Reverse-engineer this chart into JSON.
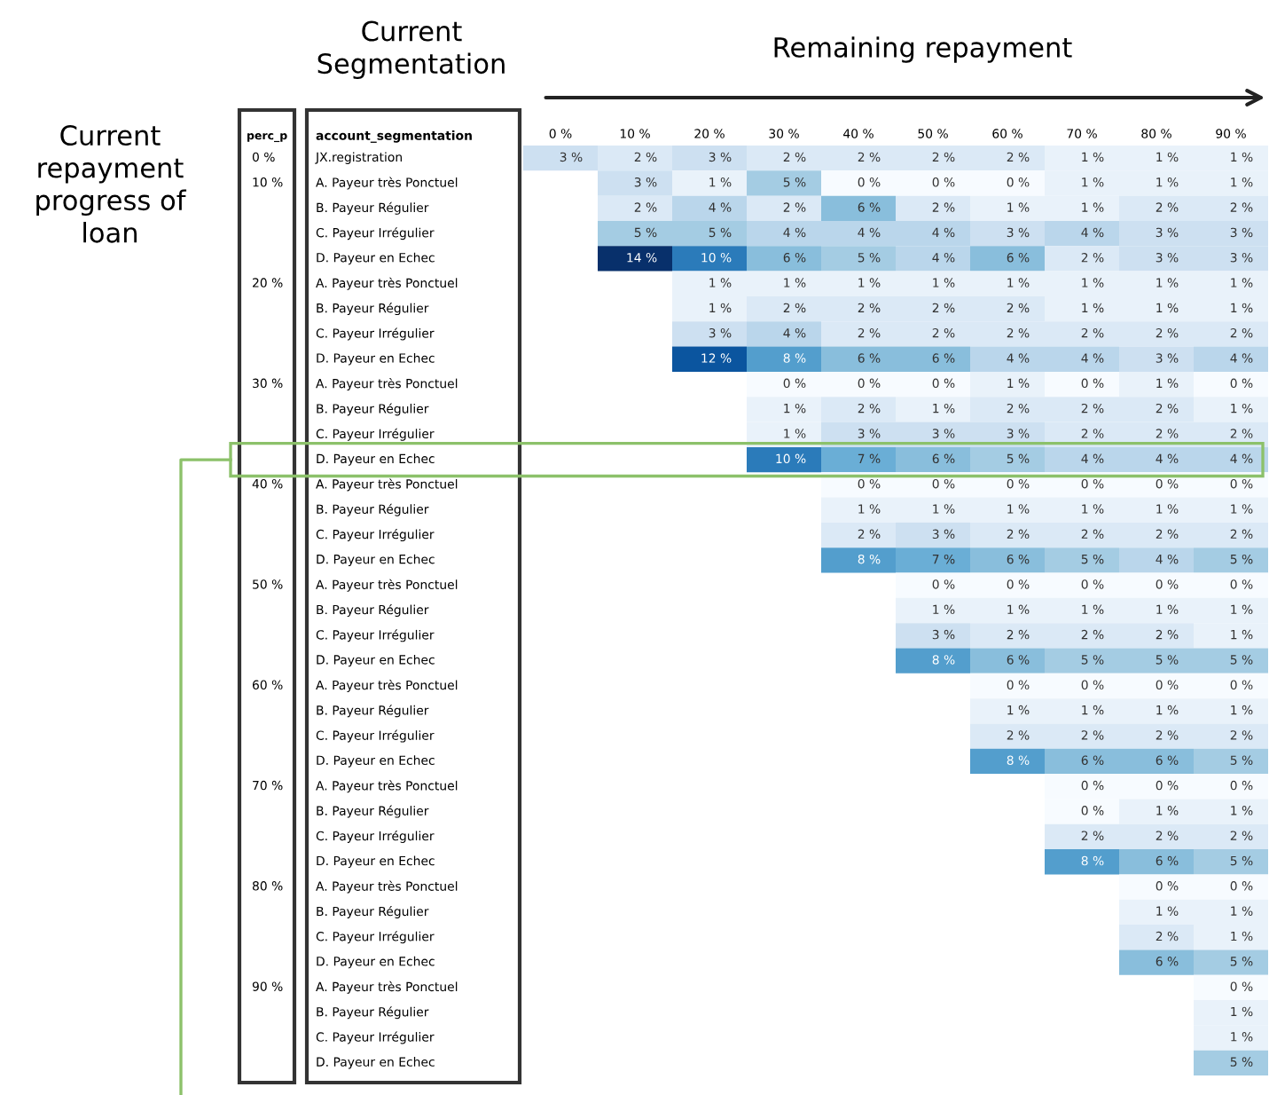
{
  "chart_data": {
    "type": "heatmap",
    "xlabel": "Remaining repayment",
    "ylabel": "Current\nrepayment\nprogress of\nloan",
    "annotations": [
      "perc_p",
      "account_segmentation",
      "Current\nSegmentation"
    ],
    "categories": [
      "0 %",
      "10 %",
      "20 %",
      "30 %",
      "40 %",
      "50 %",
      "60 %",
      "70 %",
      "80 %",
      "90 %"
    ],
    "y_categories": [
      "JX.registration",
      "A. Payeur très Ponctuel",
      "B. Payeur Régulier",
      "C. Payeur Irrégulier",
      "D. Payeur en Echec",
      "A. Payeur très Ponctuel",
      "B. Payeur Régulier",
      "C. Payeur Irrégulier",
      "D. Payeur en Echec",
      "A. Payeur très Ponctuel",
      "B. Payeur Régulier",
      "C. Payeur Irrégulier",
      "D. Payeur en Echec",
      "A. Payeur très Ponctuel",
      "B. Payeur Régulier",
      "C. Payeur Irrégulier",
      "D. Payeur en Echec",
      "A. Payeur très Ponctuel",
      "B. Payeur Régulier",
      "C. Payeur Irrégulier",
      "D. Payeur en Echec",
      "A. Payeur très Ponctuel",
      "B. Payeur Régulier",
      "C. Payeur Irrégulier",
      "D. Payeur en Echec",
      "A. Payeur très Ponctuel",
      "B. Payeur Régulier",
      "C. Payeur Irrégulier",
      "D. Payeur en Echec",
      "A. Payeur très Ponctuel",
      "B. Payeur Régulier",
      "C. Payeur Irrégulier",
      "D. Payeur en Echec",
      "A. Payeur très Ponctuel",
      "B. Payeur Régulier",
      "C. Payeur Irrégulier",
      "D. Payeur en Echec"
    ],
    "y2_categories": [
      "0 %",
      "10 %",
      null,
      null,
      null,
      "20 %",
      null,
      null,
      null,
      "30 %",
      null,
      null,
      null,
      "40 %",
      null,
      null,
      null,
      "50 %",
      null,
      null,
      null,
      "60 %",
      null,
      null,
      null,
      "70 %",
      null,
      null,
      null,
      "80 %",
      null,
      null,
      null,
      "90 %",
      null,
      null,
      null
    ],
    "cells": [
      [
        3,
        2,
        3,
        2,
        2,
        2,
        2,
        1,
        1,
        1
      ],
      [
        null,
        3,
        1,
        5,
        0,
        0,
        0,
        1,
        1,
        1
      ],
      [
        null,
        2,
        4,
        2,
        6,
        2,
        1,
        1,
        2,
        2
      ],
      [
        null,
        5,
        5,
        4,
        4,
        4,
        3,
        4,
        3,
        3
      ],
      [
        null,
        14,
        10,
        6,
        5,
        4,
        6,
        2,
        3,
        3
      ],
      [
        null,
        null,
        1,
        1,
        1,
        1,
        1,
        1,
        1,
        1
      ],
      [
        null,
        null,
        1,
        2,
        2,
        2,
        2,
        1,
        1,
        1
      ],
      [
        null,
        null,
        3,
        4,
        2,
        2,
        2,
        2,
        2,
        2
      ],
      [
        null,
        null,
        12,
        8,
        6,
        6,
        4,
        4,
        3,
        4
      ],
      [
        null,
        null,
        null,
        0,
        0,
        0,
        1,
        0,
        1,
        0
      ],
      [
        null,
        null,
        null,
        1,
        2,
        1,
        2,
        2,
        2,
        1
      ],
      [
        null,
        null,
        null,
        1,
        3,
        3,
        3,
        2,
        2,
        2
      ],
      [
        null,
        null,
        null,
        10,
        7,
        6,
        5,
        4,
        4,
        4
      ],
      [
        null,
        null,
        null,
        null,
        0,
        0,
        0,
        0,
        0,
        0
      ],
      [
        null,
        null,
        null,
        null,
        1,
        1,
        1,
        1,
        1,
        1
      ],
      [
        null,
        null,
        null,
        null,
        2,
        3,
        2,
        2,
        2,
        2
      ],
      [
        null,
        null,
        null,
        null,
        8,
        7,
        6,
        5,
        4,
        5
      ],
      [
        null,
        null,
        null,
        null,
        null,
        0,
        0,
        0,
        0,
        0
      ],
      [
        null,
        null,
        null,
        null,
        null,
        1,
        1,
        1,
        1,
        1
      ],
      [
        null,
        null,
        null,
        null,
        null,
        3,
        2,
        2,
        2,
        1
      ],
      [
        null,
        null,
        null,
        null,
        null,
        8,
        6,
        5,
        5,
        5
      ],
      [
        null,
        null,
        null,
        null,
        null,
        null,
        0,
        0,
        0,
        0
      ],
      [
        null,
        null,
        null,
        null,
        null,
        null,
        1,
        1,
        1,
        1
      ],
      [
        null,
        null,
        null,
        null,
        null,
        null,
        2,
        2,
        2,
        2
      ],
      [
        null,
        null,
        null,
        null,
        null,
        null,
        8,
        6,
        6,
        5
      ],
      [
        null,
        null,
        null,
        null,
        null,
        null,
        null,
        0,
        0,
        0
      ],
      [
        null,
        null,
        null,
        null,
        null,
        null,
        null,
        0,
        1,
        1
      ],
      [
        null,
        null,
        null,
        null,
        null,
        null,
        null,
        2,
        2,
        2
      ],
      [
        null,
        null,
        null,
        null,
        null,
        null,
        null,
        8,
        6,
        5
      ],
      [
        null,
        null,
        null,
        null,
        null,
        null,
        null,
        null,
        0,
        0
      ],
      [
        null,
        null,
        null,
        null,
        null,
        null,
        null,
        null,
        1,
        1
      ],
      [
        null,
        null,
        null,
        null,
        null,
        null,
        null,
        null,
        2,
        1
      ],
      [
        null,
        null,
        null,
        null,
        null,
        null,
        null,
        null,
        6,
        5
      ],
      [
        null,
        null,
        null,
        null,
        null,
        null,
        null,
        null,
        null,
        0
      ],
      [
        null,
        null,
        null,
        null,
        null,
        null,
        null,
        null,
        null,
        1
      ],
      [
        null,
        null,
        null,
        null,
        null,
        null,
        null,
        null,
        null,
        1
      ],
      [
        null,
        null,
        null,
        null,
        null,
        null,
        null,
        null,
        null,
        5
      ]
    ],
    "cell_labels": [
      [
        "3 %",
        "2 %",
        "3 %",
        "2 %",
        "2 %",
        "2 %",
        "2 %",
        "1 %",
        "1 %",
        "1 %"
      ],
      [
        null,
        "3 %",
        "1 %",
        "5 %",
        "0 %",
        "0 %",
        "0 %",
        "1 %",
        "1 %",
        "1 %"
      ],
      [
        null,
        "2 %",
        "4 %",
        "2 %",
        "6 %",
        "2 %",
        "1 %",
        "1 %",
        "2 %",
        "2 %"
      ],
      [
        null,
        "5 %",
        "5 %",
        "4 %",
        "4 %",
        "4 %",
        "3 %",
        "4 %",
        "3 %",
        "3 %"
      ],
      [
        null,
        "14 %",
        "10 %",
        "6 %",
        "5 %",
        "4 %",
        "6 %",
        "2 %",
        "3 %",
        "3 %"
      ],
      [
        null,
        null,
        "1 %",
        "1 %",
        "1 %",
        "1 %",
        "1 %",
        "1 %",
        "1 %",
        "1 %"
      ],
      [
        null,
        null,
        "1 %",
        "2 %",
        "2 %",
        "2 %",
        "2 %",
        "1 %",
        "1 %",
        "1 %"
      ],
      [
        null,
        null,
        "3 %",
        "4 %",
        "2 %",
        "2 %",
        "2 %",
        "2 %",
        "2 %",
        "2 %"
      ],
      [
        null,
        null,
        "12 %",
        "8 %",
        "6 %",
        "6 %",
        "4 %",
        "4 %",
        "3 %",
        "4 %"
      ],
      [
        null,
        null,
        null,
        "0 %",
        "0 %",
        "0 %",
        "1 %",
        "0 %",
        "1 %",
        "0 %"
      ],
      [
        null,
        null,
        null,
        "1 %",
        "2 %",
        "1 %",
        "2 %",
        "2 %",
        "2 %",
        "1 %"
      ],
      [
        null,
        null,
        null,
        "1 %",
        "3 %",
        "3 %",
        "3 %",
        "2 %",
        "2 %",
        "2 %"
      ],
      [
        null,
        null,
        null,
        "10 %",
        "7 %",
        "6 %",
        "5 %",
        "4 %",
        "4 %",
        "4 %"
      ],
      [
        null,
        null,
        null,
        null,
        "0 %",
        "0 %",
        "0 %",
        "0 %",
        "0 %",
        "0 %"
      ],
      [
        null,
        null,
        null,
        null,
        "1 %",
        "1 %",
        "1 %",
        "1 %",
        "1 %",
        "1 %"
      ],
      [
        null,
        null,
        null,
        null,
        "2 %",
        "3 %",
        "2 %",
        "2 %",
        "2 %",
        "2 %"
      ],
      [
        null,
        null,
        null,
        null,
        "8 %",
        "7 %",
        "6 %",
        "5 %",
        "4 %",
        "5 %"
      ],
      [
        null,
        null,
        null,
        null,
        null,
        "0 %",
        "0 %",
        "0 %",
        "0 %",
        "0 %"
      ],
      [
        null,
        null,
        null,
        null,
        null,
        "1 %",
        "1 %",
        "1 %",
        "1 %",
        "1 %"
      ],
      [
        null,
        null,
        null,
        null,
        null,
        "3 %",
        "2 %",
        "2 %",
        "2 %",
        "1 %"
      ],
      [
        null,
        null,
        null,
        null,
        null,
        "8 %",
        "6 %",
        "5 %",
        "5 %",
        "5 %"
      ],
      [
        null,
        null,
        null,
        null,
        null,
        null,
        "0 %",
        "0 %",
        "0 %",
        "0 %"
      ],
      [
        null,
        null,
        null,
        null,
        null,
        null,
        "1 %",
        "1 %",
        "1 %",
        "1 %"
      ],
      [
        null,
        null,
        null,
        null,
        null,
        null,
        "2 %",
        "2 %",
        "2 %",
        "2 %"
      ],
      [
        null,
        null,
        null,
        null,
        null,
        null,
        "8 %",
        "6 %",
        "6 %",
        "5 %"
      ],
      [
        null,
        null,
        null,
        null,
        null,
        null,
        null,
        "0 %",
        "0 %",
        "0 %"
      ],
      [
        null,
        null,
        null,
        null,
        null,
        null,
        null,
        "0 %",
        "1 %",
        "1 %"
      ],
      [
        null,
        null,
        null,
        null,
        null,
        null,
        null,
        "2 %",
        "2 %",
        "2 %"
      ],
      [
        null,
        null,
        null,
        null,
        null,
        null,
        null,
        "8 %",
        "6 %",
        "5 %"
      ],
      [
        null,
        null,
        null,
        null,
        null,
        null,
        null,
        null,
        "0 %",
        "0 %"
      ],
      [
        null,
        null,
        null,
        null,
        null,
        null,
        null,
        null,
        "1 %",
        "1 %"
      ],
      [
        null,
        null,
        null,
        null,
        null,
        null,
        null,
        null,
        "2 %",
        "1 %"
      ],
      [
        null,
        null,
        null,
        null,
        null,
        null,
        null,
        null,
        "6 %",
        "5 %"
      ],
      [
        null,
        null,
        null,
        null,
        null,
        null,
        null,
        null,
        null,
        "0 %"
      ],
      [
        null,
        null,
        null,
        null,
        null,
        null,
        null,
        null,
        null,
        "1 %"
      ],
      [
        null,
        null,
        null,
        null,
        null,
        null,
        null,
        null,
        null,
        "1 %"
      ],
      [
        null,
        null,
        null,
        null,
        null,
        null,
        null,
        null,
        null,
        "5 %"
      ]
    ]
  }
}
